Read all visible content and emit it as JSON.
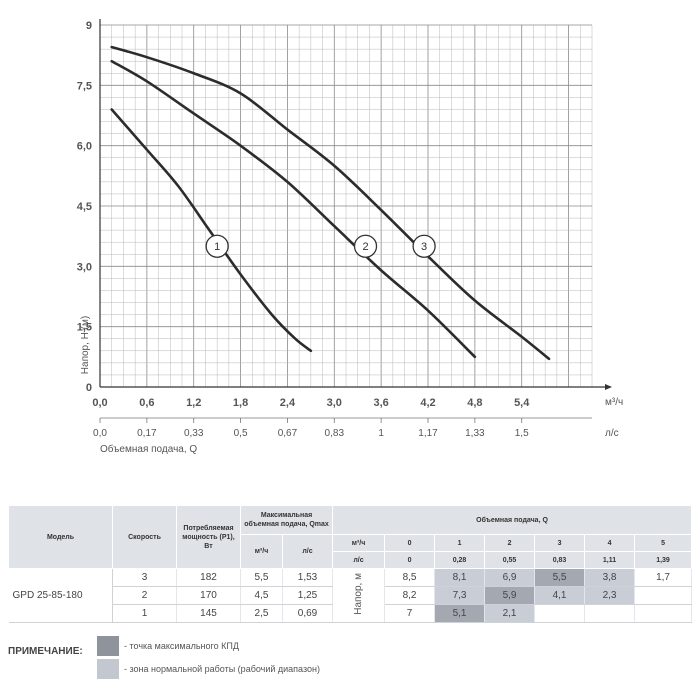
{
  "chart_data": {
    "type": "line",
    "ylabel": "Напор, H (м)",
    "xlabel_unit": "м³/ч",
    "xlabel2": "Объемная подача, Q",
    "xlabel2_unit": "л/с",
    "xlim": [
      0,
      6.3
    ],
    "ylim": [
      0,
      9
    ],
    "grid": true,
    "x_ticks": [
      "0,0",
      "0,6",
      "1,2",
      "1,8",
      "2,4",
      "3,0",
      "3,6",
      "4,2",
      "4,8",
      "5,4"
    ],
    "x_tick_values": [
      0,
      0.6,
      1.2,
      1.8,
      2.4,
      3.0,
      3.6,
      4.2,
      4.8,
      5.4
    ],
    "x2_ticks": [
      "0,0",
      "0,17",
      "0,33",
      "0,5",
      "0,67",
      "0,83",
      "1",
      "1,17",
      "1,33",
      "1,5"
    ],
    "y_ticks": [
      "0",
      "1,5",
      "3,0",
      "4,5",
      "6,0",
      "7,5",
      "9"
    ],
    "y_tick_values": [
      0,
      1.5,
      3.0,
      4.5,
      6.0,
      7.5,
      9
    ],
    "series": [
      {
        "name": "1",
        "x": [
          0.15,
          0.6,
          1.0,
          1.4,
          1.8,
          2.2,
          2.5,
          2.7
        ],
        "y": [
          6.9,
          5.9,
          5.0,
          3.9,
          2.8,
          1.8,
          1.2,
          0.9
        ],
        "label_at": [
          1.5,
          3.5
        ]
      },
      {
        "name": "2",
        "x": [
          0.15,
          0.6,
          1.2,
          1.8,
          2.4,
          3.0,
          3.6,
          4.2,
          4.8
        ],
        "y": [
          8.1,
          7.6,
          6.8,
          6.0,
          5.1,
          4.0,
          2.9,
          1.9,
          0.75
        ],
        "label_at": [
          3.4,
          3.5
        ]
      },
      {
        "name": "3",
        "x": [
          0.15,
          0.6,
          1.2,
          1.8,
          2.4,
          3.0,
          3.6,
          4.2,
          4.8,
          5.4,
          5.75
        ],
        "y": [
          8.45,
          8.2,
          7.8,
          7.3,
          6.4,
          5.5,
          4.4,
          3.25,
          2.15,
          1.25,
          0.7
        ],
        "label_at": [
          4.15,
          3.5
        ]
      }
    ]
  },
  "table": {
    "headers": {
      "model": "Модель",
      "speed": "Скорость",
      "power": "Потребляемая мощность (P1), Вт",
      "qmax": "Максимальная объемная подача, Qmax",
      "qmax_m3h": "м³/ч",
      "qmax_ls": "л/с",
      "flow": "Объемная подача, Q",
      "flow_m3h": "м³/ч",
      "flow_ls": "л/с"
    },
    "flow_m3h": [
      "0",
      "1",
      "2",
      "3",
      "4",
      "5"
    ],
    "flow_ls": [
      "0",
      "0,28",
      "0,55",
      "0,83",
      "1,11",
      "1,39"
    ],
    "head_label": "Напор, м",
    "model": "GPD 25-85-180",
    "rows": [
      {
        "speed": "3",
        "power": "182",
        "qmax_m3h": "5,5",
        "qmax_ls": "1,53",
        "heads": [
          "8,5",
          "8,1",
          "6,9",
          "5,5",
          "3,8",
          "1,7"
        ]
      },
      {
        "speed": "2",
        "power": "170",
        "qmax_m3h": "4,5",
        "qmax_ls": "1,25",
        "heads": [
          "8,2",
          "7,3",
          "5,9",
          "4,1",
          "2,3",
          ""
        ]
      },
      {
        "speed": "1",
        "power": "145",
        "qmax_m3h": "2,5",
        "qmax_ls": "0,69",
        "heads": [
          "7",
          "5,1",
          "2,1",
          "",
          "",
          ""
        ]
      }
    ]
  },
  "note": {
    "title": "ПРИМЕЧАНИЕ:",
    "max_eff": "- точка максимального КПД",
    "normal_zone": "- зона нормальной работы (рабочий диапазон)",
    "max_eff_color": "#8f949c",
    "zone_color": "#c3c8d0"
  }
}
